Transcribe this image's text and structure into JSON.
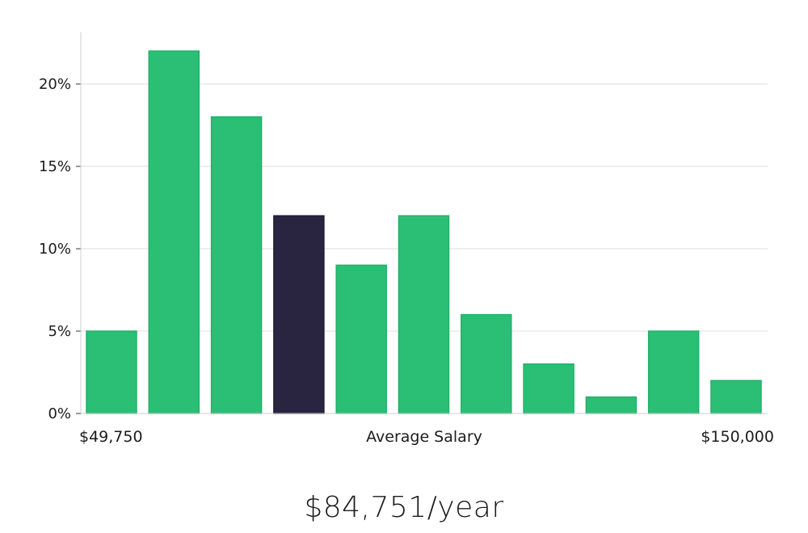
{
  "chart_data": {
    "type": "bar",
    "title": "",
    "xlabel": "Average Salary",
    "x_range_labels": [
      "$49,750",
      "$150,000"
    ],
    "ylabel": "",
    "ylim": [
      0,
      23
    ],
    "yticks": [
      0,
      5,
      10,
      15,
      20
    ],
    "ytick_labels": [
      "0%",
      "5%",
      "10%",
      "15%",
      "20%"
    ],
    "grid": true,
    "values": [
      5,
      22,
      18,
      12,
      9,
      12,
      6,
      3,
      1,
      5,
      2
    ],
    "highlight_index": 3,
    "colors": {
      "bar": "#2bbf76",
      "highlight": "#29243f",
      "grid": "#dddddd",
      "axis": "#cfcfcf"
    }
  },
  "summary": "$84,751/year"
}
